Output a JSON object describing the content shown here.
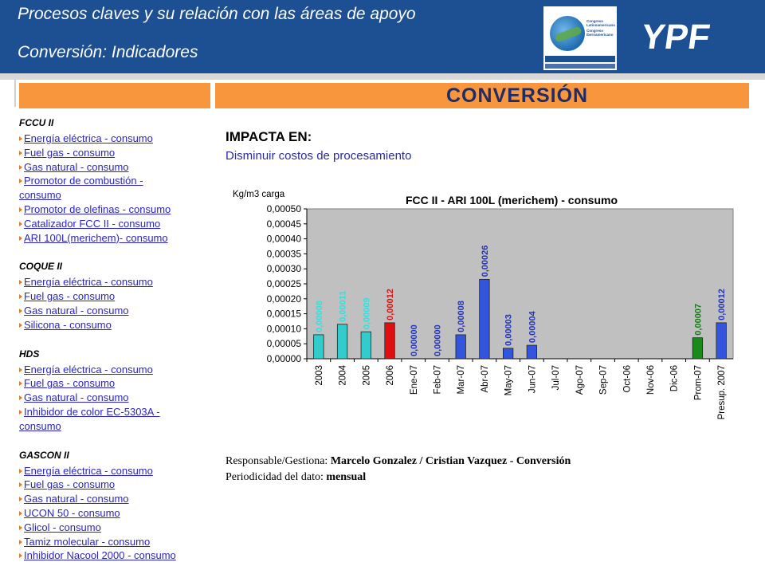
{
  "header": {
    "title_line1": "Procesos claves y su relación con las áreas de apoyo",
    "title_line2": "Conversión: Indicadores",
    "brand": "YPF",
    "congress_logo": {
      "lines": [
        "Congreso",
        "Latinoamericano",
        "Congreso",
        "Iberoamericano"
      ]
    }
  },
  "banner": {
    "title": "CONVERSIÓN"
  },
  "sidebar": {
    "sections": [
      {
        "heading": "FCCU II",
        "items": [
          "Energía eléctrica - consumo",
          "Fuel gas - consumo",
          "Gas natural - consumo",
          "Promotor de combustión -",
          "consumo",
          "Promotor de olefinas - consumo",
          "Catalizador FCC II - consumo",
          "ARI 100L(merichem)- consumo"
        ]
      },
      {
        "heading": "COQUE II",
        "items": [
          "Energía eléctrica - consumo",
          "Fuel gas - consumo",
          "Gas natural - consumo",
          "Silicona - consumo"
        ]
      },
      {
        "heading": "HDS",
        "items": [
          "Energía eléctrica - consumo",
          "Fuel gas - consumo",
          "Gas natural - consumo",
          "Inhibidor de color EC-5303A -",
          "consumo"
        ]
      },
      {
        "heading": "GASCON II",
        "items": [
          "Energía eléctrica - consumo",
          "Fuel gas - consumo",
          "Gas natural - consumo",
          "UCON 50 - consumo",
          "Glicol - consumo",
          "Tamiz molecular - consumo",
          "Inhibidor Nacool 2000 - consumo"
        ]
      }
    ]
  },
  "main": {
    "impacta_label": "IMPACTA EN:",
    "impacta_value": "Disminuir costos de procesamiento",
    "responsable_label": "Responsable/Gestiona:",
    "responsable_value": "Marcelo Gonzalez / Cristian Vazquez - Conversión",
    "periodicidad_label": "Periodicidad del dato:",
    "periodicidad_value": "mensual"
  },
  "chart_data": {
    "type": "bar",
    "title": "FCC II - ARI 100L (merichem) - consumo",
    "ylabel": "Kg/m3 carga",
    "xlabel": "",
    "ylim": [
      0,
      0.0005
    ],
    "yticks": [
      "0,00000",
      "0,00005",
      "0,00010",
      "0,00015",
      "0,00020",
      "0,00025",
      "0,00030",
      "0,00035",
      "0,00040",
      "0,00045",
      "0,00050"
    ],
    "grid": false,
    "plot_background": "#c0c0c0",
    "categories": [
      "2003",
      "2004",
      "2005",
      "2006",
      "Ene-07",
      "Feb-07",
      "Mar-07",
      "Abr-07",
      "May-07",
      "Jun-07",
      "Jul-07",
      "Ago-07",
      "Sep-07",
      "Oct-06",
      "Nov-06",
      "Dic-06",
      "Prom-07",
      "Presup. 2007"
    ],
    "values": [
      8e-05,
      0.00011,
      9e-05,
      0.00012,
      0.0,
      0.0,
      8e-05,
      0.00026,
      3e-05,
      4e-05,
      null,
      null,
      null,
      null,
      null,
      null,
      7e-05,
      0.00012
    ],
    "labels": [
      "0,00008",
      "0,00011",
      "0,00009",
      "0,00012",
      "0,00000",
      "0,00000",
      "0,00008",
      "0,00026",
      "0,00003",
      "0,00004",
      "",
      "",
      "",
      "",
      "",
      "",
      "0,00007",
      "0,00012"
    ],
    "bar_values": [
      8e-05,
      0.000115,
      9e-05,
      0.00012,
      0.0,
      0.0,
      8e-05,
      0.000265,
      3.5e-05,
      4.5e-05,
      null,
      null,
      null,
      null,
      null,
      null,
      7e-05,
      0.00012
    ],
    "colors": [
      "#33cccc",
      "#33cccc",
      "#33cccc",
      "#e01010",
      "#3355dd",
      "#3355dd",
      "#3355dd",
      "#3355dd",
      "#3355dd",
      "#3355dd",
      "#3355dd",
      "#3355dd",
      "#3355dd",
      "#3355dd",
      "#3355dd",
      "#3355dd",
      "#1a8a1a",
      "#3355dd"
    ],
    "label_colors": [
      "#33e0e0",
      "#33e0e0",
      "#33e0e0",
      "#e01010",
      "#2233bb",
      "#2233bb",
      "#2233bb",
      "#2233bb",
      "#2233bb",
      "#2233bb",
      "#2233bb",
      "#2233bb",
      "#2233bb",
      "#2233bb",
      "#2233bb",
      "#2233bb",
      "#1a7a1a",
      "#2233bb"
    ]
  },
  "colors": {
    "header_bg": "#1d4f93",
    "banner_bg": "#f7963c",
    "banner_text": "#1d2c6b",
    "link": "#2a25c9"
  }
}
